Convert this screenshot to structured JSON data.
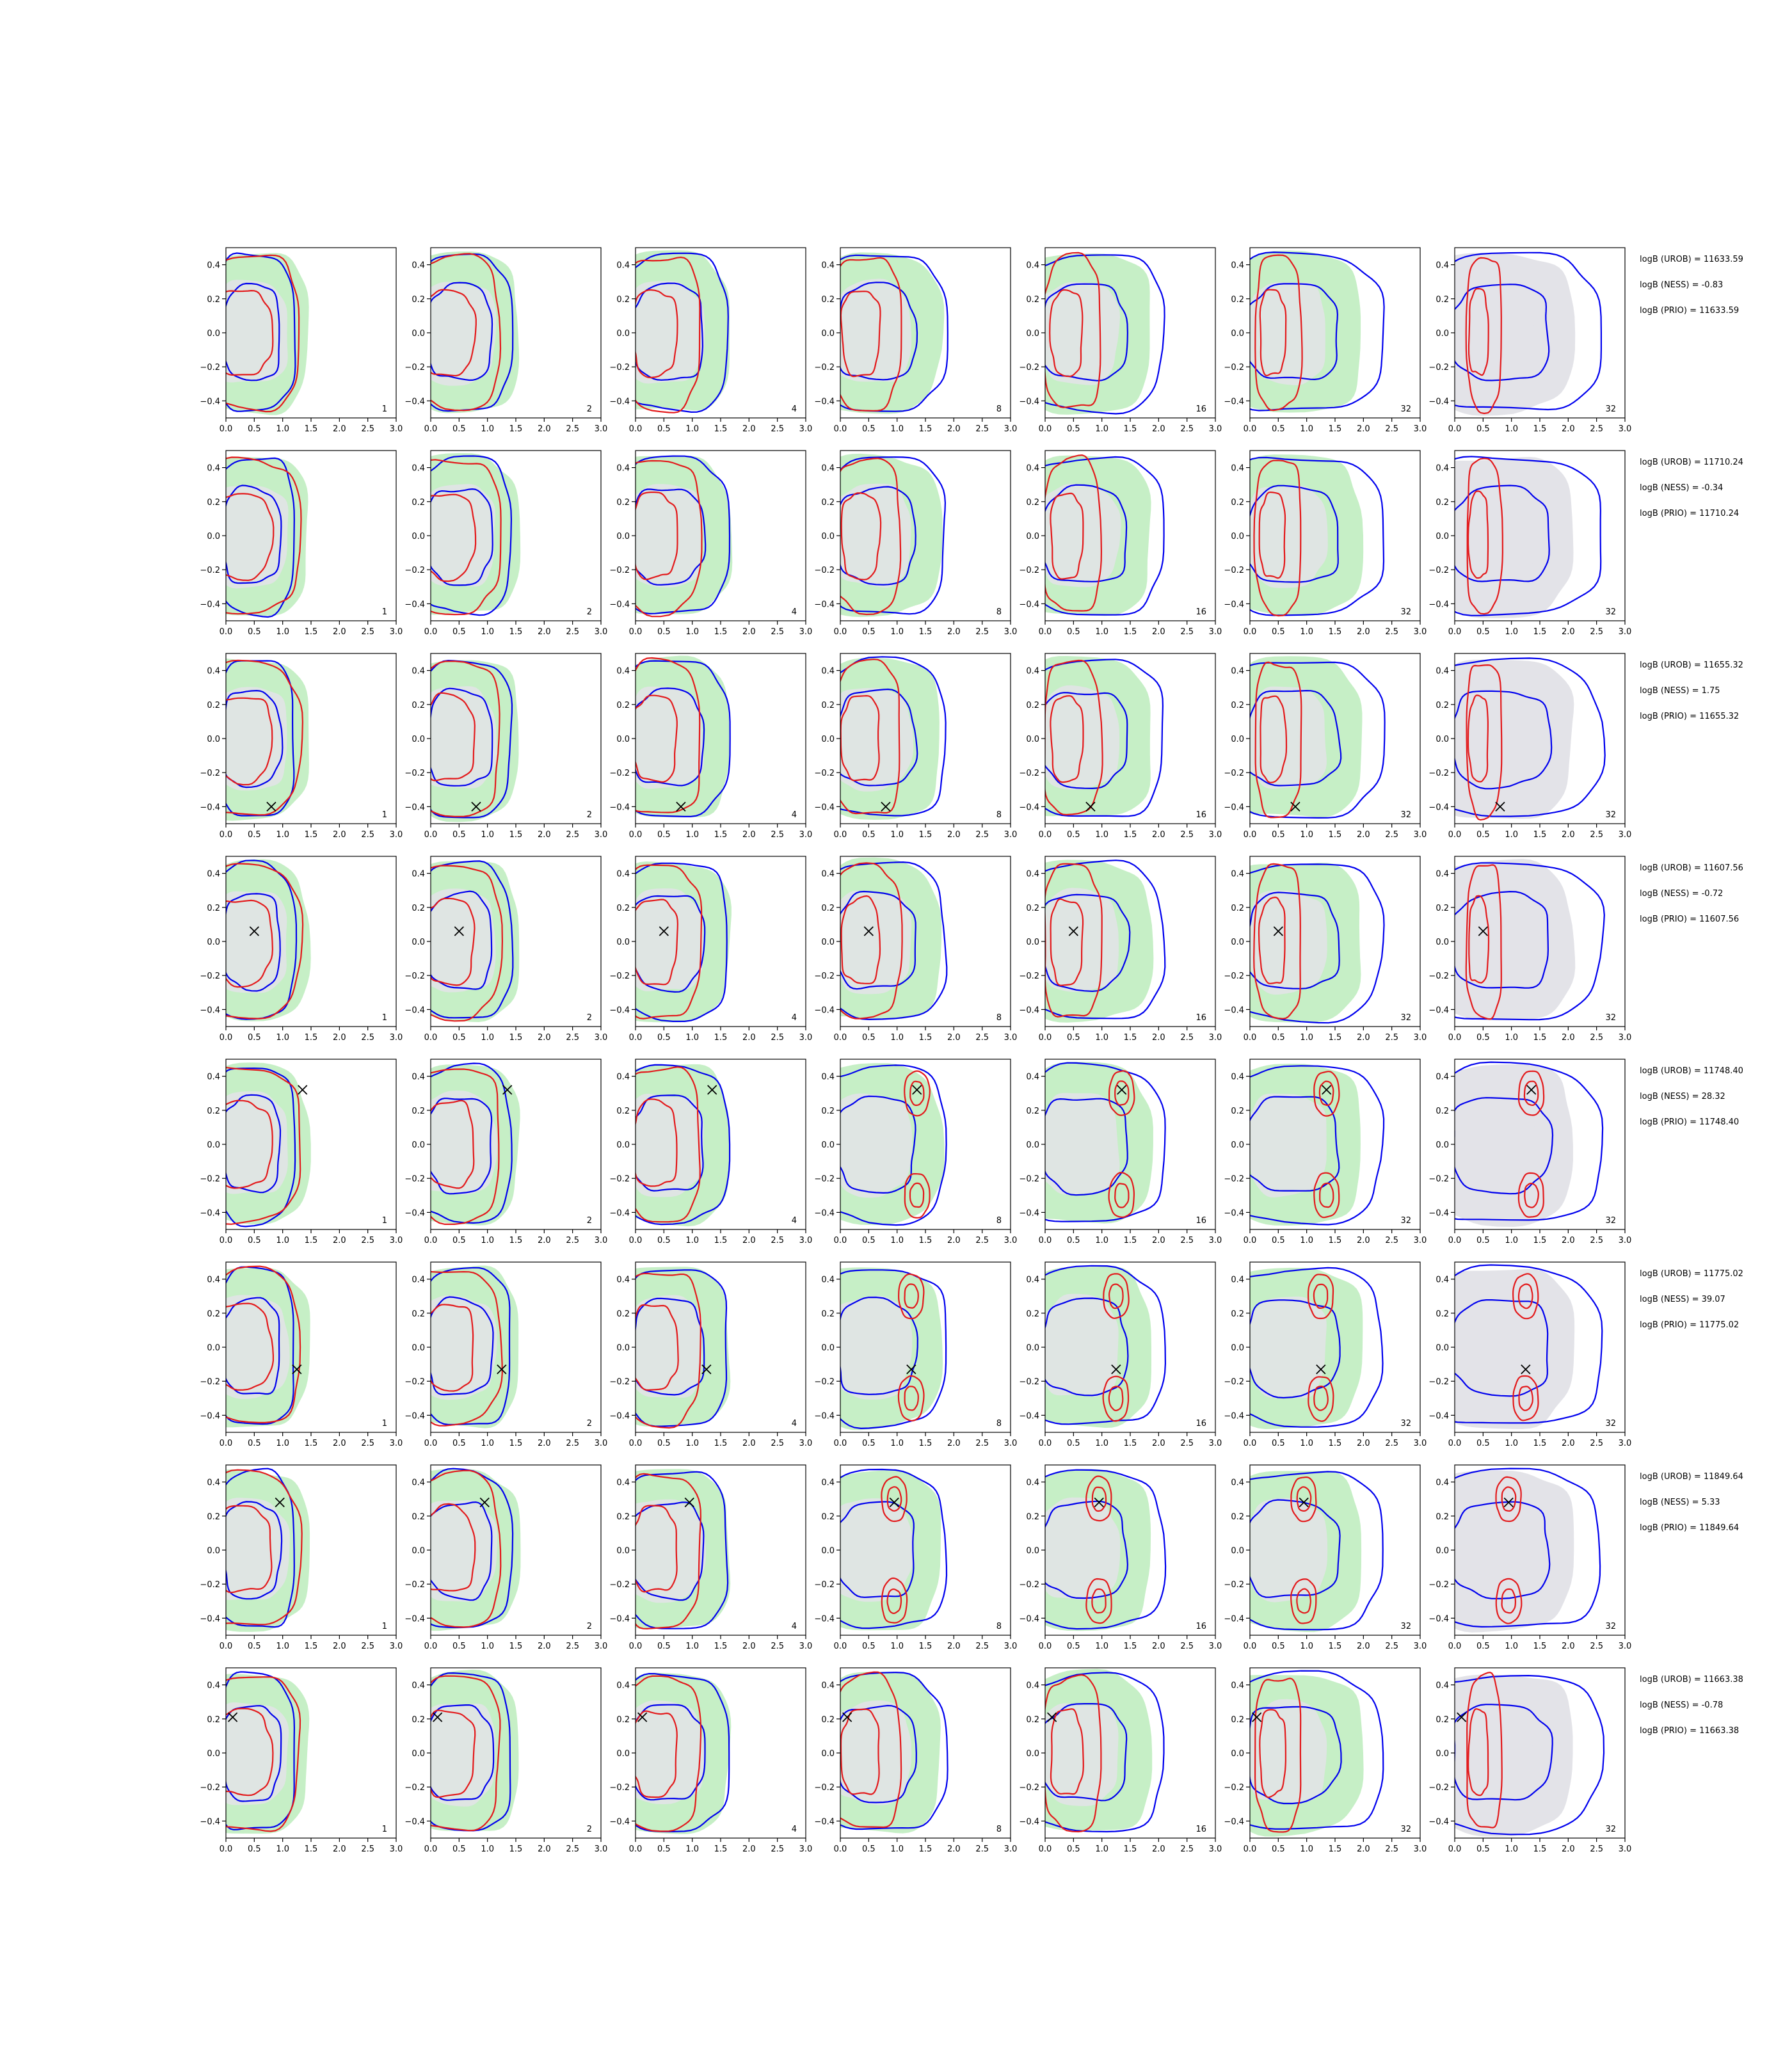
{
  "colors": {
    "gray_fill": "#e3e3e8",
    "green_fill": "#c6efc6",
    "blue_line": "#0000ee",
    "red_line": "#e31a1c",
    "marker": "#000000"
  },
  "chart_data": {
    "type": "contour-grid",
    "xlim": [
      0.0,
      3.0
    ],
    "ylim": [
      -0.5,
      0.5
    ],
    "xticks": [
      "0.0",
      "0.5",
      "1.0",
      "1.5",
      "2.0",
      "2.5",
      "3.0"
    ],
    "yticks": [
      "0.4",
      "0.2",
      "0.0",
      "−0.2",
      "−0.4"
    ],
    "column_labels": [
      "1",
      "2",
      "4",
      "8",
      "16",
      "32",
      "32"
    ],
    "column_prior": [
      "green",
      "green",
      "green",
      "green",
      "green",
      "green",
      "gray"
    ],
    "rows": [
      {
        "logB": [
          "logB (UROB) = 11633.59",
          "logB (NESS) = -0.83",
          "logB (PRIO) = 11633.59"
        ],
        "marker": null,
        "shape": "unimodal"
      },
      {
        "logB": [
          "logB (UROB) = 11710.24",
          "logB (NESS) = -0.34",
          "logB (PRIO) = 11710.24"
        ],
        "marker": null,
        "shape": "unimodal"
      },
      {
        "logB": [
          "logB (UROB) = 11655.32",
          "logB (NESS) = 1.75",
          "logB (PRIO) = 11655.32"
        ],
        "marker": [
          0.8,
          -0.4
        ],
        "shape": "edge"
      },
      {
        "logB": [
          "logB (UROB) = 11607.56",
          "logB (NESS) = -0.72",
          "logB (PRIO) = 11607.56"
        ],
        "marker": [
          0.5,
          0.06
        ],
        "shape": "unimodal"
      },
      {
        "logB": [
          "logB (UROB) = 11748.40",
          "logB (NESS) = 28.32",
          "logB (PRIO) = 11748.40"
        ],
        "marker": [
          1.35,
          0.32
        ],
        "shape": "bimodal"
      },
      {
        "logB": [
          "logB (UROB) = 11775.02",
          "logB (NESS) = 39.07",
          "logB (PRIO) = 11775.02"
        ],
        "marker": [
          1.25,
          -0.13
        ],
        "shape": "bimodal"
      },
      {
        "logB": [
          "logB (UROB) = 11849.64",
          "logB (NESS) = 5.33",
          "logB (PRIO) = 11849.64"
        ],
        "marker": [
          0.95,
          0.28
        ],
        "shape": "bimodal"
      },
      {
        "logB": [
          "logB (UROB) = 11663.38",
          "logB (NESS) = -0.78",
          "logB (PRIO) = 11663.38"
        ],
        "marker": [
          0.12,
          0.21
        ],
        "shape": "unimodal"
      }
    ]
  }
}
